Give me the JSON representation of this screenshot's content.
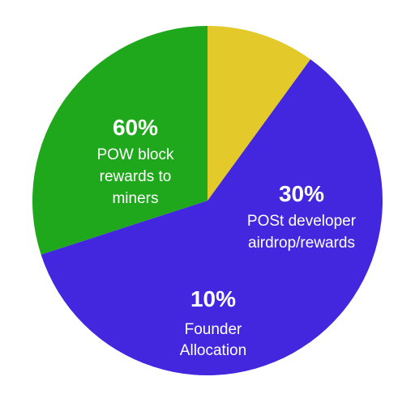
{
  "chart_data": {
    "type": "pie",
    "title": "",
    "slices": [
      {
        "value": 60,
        "value_label": "60%",
        "label_lines": [
          "POW block",
          "rewards to",
          "miners"
        ],
        "color": "#4327DE"
      },
      {
        "value": 30,
        "value_label": "30%",
        "label_lines": [
          "POSt developer",
          "airdrop/rewards"
        ],
        "color": "#20A81C"
      },
      {
        "value": 10,
        "value_label": "10%",
        "label_lines": [
          "Founder",
          "Allocation"
        ],
        "color": "#E3C92A"
      }
    ],
    "start_angle_deg": 36,
    "direction": "clockwise",
    "legend": "none",
    "label_placement": "inside"
  }
}
